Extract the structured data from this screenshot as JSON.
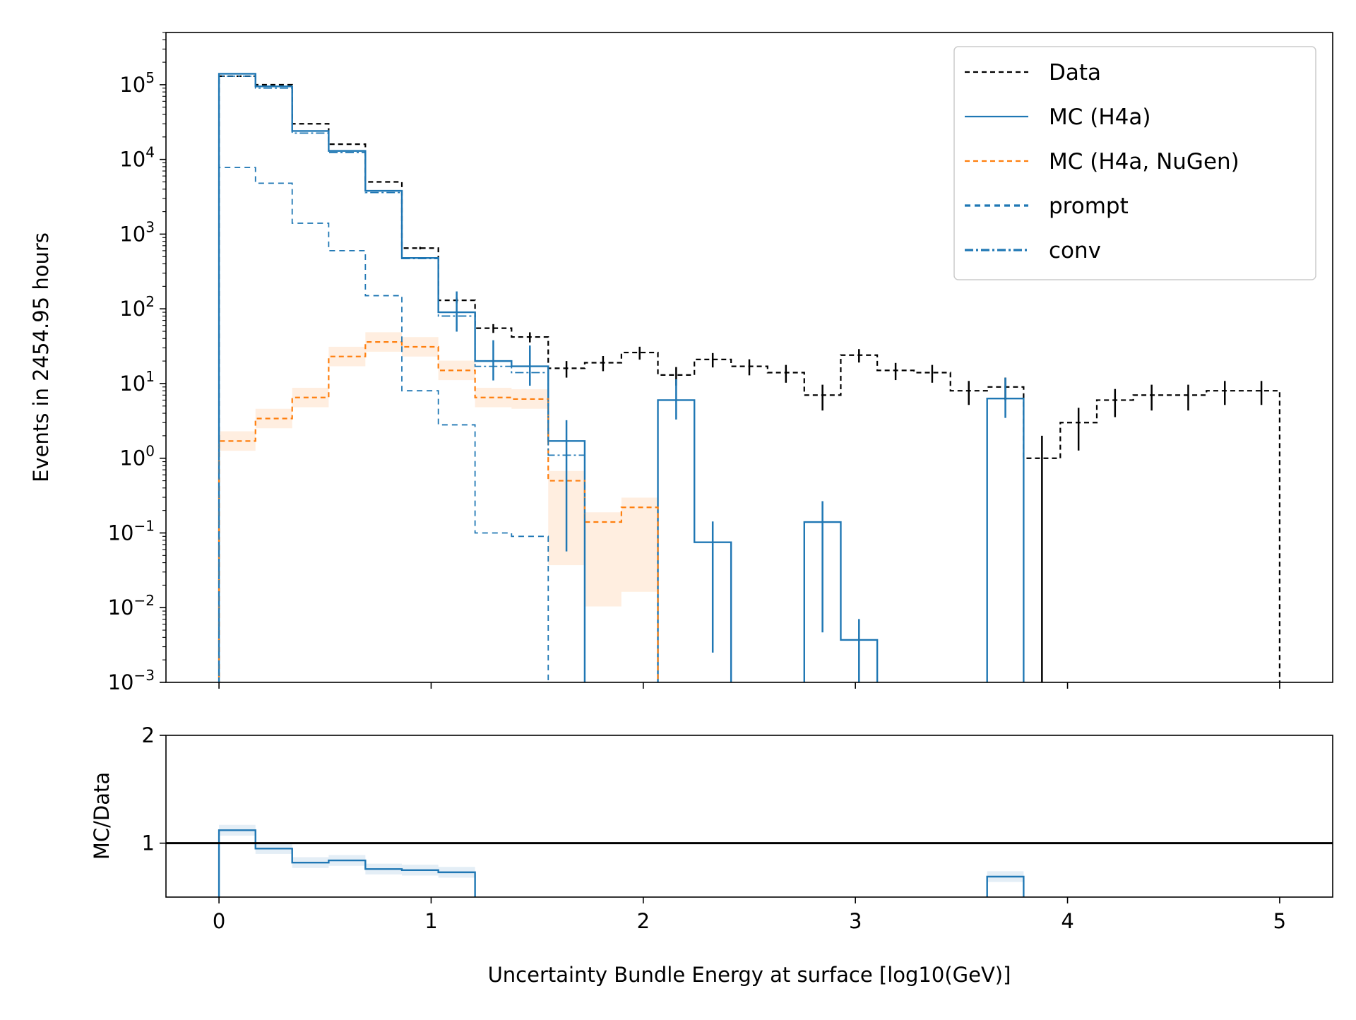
{
  "chart_data": [
    {
      "type": "step",
      "panel": "main",
      "ylabel": "Events in 2454.95 hours",
      "yscale": "log",
      "ylim": [
        0.001,
        500000
      ],
      "xlim": [
        -0.25,
        5.25
      ],
      "ytick_labels": [
        {
          "base": "10",
          "exp": "5",
          "value": 100000
        },
        {
          "base": "10",
          "exp": "4",
          "value": 10000
        },
        {
          "base": "10",
          "exp": "3",
          "value": 1000
        },
        {
          "base": "10",
          "exp": "2",
          "value": 100
        },
        {
          "base": "10",
          "exp": "1",
          "value": 10
        },
        {
          "base": "10",
          "exp": "0",
          "value": 1
        },
        {
          "base": "10",
          "exp": "−1",
          "value": 0.1
        },
        {
          "base": "10",
          "exp": "−2",
          "value": 0.01
        },
        {
          "base": "10",
          "exp": "−3",
          "value": 0.001
        }
      ],
      "legend": {
        "placement": "top-right",
        "entries": [
          {
            "label": "Data",
            "color": "#000000",
            "style": "dashed"
          },
          {
            "label": "MC (H4a)",
            "color": "#1f77b4",
            "style": "solid"
          },
          {
            "label": "MC (H4a, NuGen)",
            "color": "#ff7f0e",
            "style": "dashed"
          },
          {
            "label": "prompt",
            "color": "#1f77b4",
            "style": "dashed-thick"
          },
          {
            "label": "conv",
            "color": "#1f77b4",
            "style": "dashdot"
          }
        ]
      },
      "bin_edges": [
        0.0,
        0.172,
        0.345,
        0.517,
        0.69,
        0.862,
        1.034,
        1.207,
        1.379,
        1.552,
        1.724,
        1.897,
        2.069,
        2.241,
        2.414,
        2.586,
        2.759,
        2.931,
        3.103,
        3.276,
        3.448,
        3.621,
        3.793,
        3.966,
        4.138,
        4.31,
        4.483,
        4.655,
        4.828,
        5.0
      ],
      "series": [
        {
          "name": "Data",
          "color": "#000000",
          "values": [
            130000,
            100000,
            30000,
            16000,
            5000,
            650,
            130,
            55,
            42,
            16,
            19,
            26,
            13,
            21,
            17,
            14,
            7,
            24,
            15,
            14,
            8,
            9,
            1,
            3,
            6,
            7,
            7,
            8,
            8
          ]
        },
        {
          "name": "MC (H4a)",
          "color": "#1f77b4",
          "values": [
            140000,
            95000,
            24000,
            13000,
            3800,
            480,
            90,
            20,
            17,
            1.7,
            0,
            0,
            6,
            0.075,
            0,
            0,
            0.14,
            0.0037,
            0,
            0,
            0,
            6.3,
            0,
            0,
            0,
            0,
            0,
            0,
            0
          ]
        },
        {
          "name": "MC (H4a, NuGen)",
          "color": "#ff7f0e",
          "values": [
            1.7,
            3.4,
            6.5,
            23,
            36,
            31,
            15,
            6.5,
            6.2,
            0.5,
            0.14,
            0.22,
            0,
            0,
            0,
            0,
            0,
            0,
            0,
            0,
            0,
            0,
            0,
            0,
            0,
            0,
            0,
            0,
            0
          ]
        },
        {
          "name": "prompt",
          "color": "#1f77b4",
          "values": [
            7800,
            4800,
            1400,
            600,
            150,
            8,
            2.8,
            0.1,
            0.09,
            0,
            0,
            0,
            0,
            0,
            0,
            0,
            0,
            0,
            0,
            0,
            0,
            0,
            0,
            0,
            0,
            0,
            0,
            0,
            0
          ]
        },
        {
          "name": "conv",
          "color": "#1f77b4",
          "values": [
            130000,
            90000,
            22500,
            12400,
            3600,
            470,
            80,
            17,
            14,
            1.1,
            0,
            0,
            0,
            0,
            0,
            0,
            0,
            0,
            0,
            0,
            0,
            0,
            0,
            0,
            0,
            0,
            0,
            0,
            0
          ]
        }
      ]
    },
    {
      "type": "step",
      "panel": "ratio",
      "ylabel": "MC/Data",
      "xlabel": "Uncertainty Bundle Energy at surface [log10(GeV)]",
      "ylim": [
        0.5,
        2
      ],
      "yticks": [
        "1",
        "2"
      ],
      "xticks": [
        "0",
        "1",
        "2",
        "3",
        "4",
        "5"
      ],
      "reference_line": 1,
      "bin_edges": [
        0.0,
        0.172,
        0.345,
        0.517,
        0.69,
        0.862,
        1.034,
        1.207,
        1.379,
        1.552,
        1.724,
        1.897,
        2.069,
        2.241,
        2.414,
        2.586,
        2.759,
        2.931,
        3.103,
        3.276,
        3.448,
        3.621,
        3.793
      ],
      "values": [
        1.12,
        0.95,
        0.82,
        0.84,
        0.76,
        0.75,
        0.73,
        0.35,
        0.4,
        0.1,
        0,
        0,
        0.45,
        0,
        0,
        0,
        0.02,
        0,
        0,
        0,
        0,
        0.69
      ]
    }
  ]
}
